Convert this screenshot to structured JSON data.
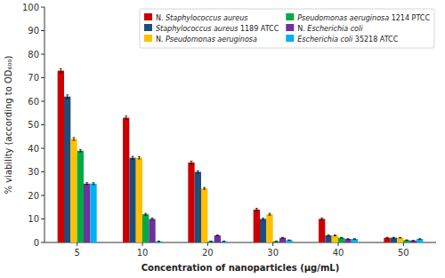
{
  "chart_data": {
    "type": "bar",
    "xlabel": "Concentration of nanoparticles (μg/mL)",
    "ylabel": "% viability (according to OD₆₀₀)",
    "categories": [
      "5",
      "10",
      "20",
      "30",
      "40",
      "50"
    ],
    "series": [
      {
        "name": "N. Staphylococcus aureus",
        "color": "#cc0000",
        "values": [
          73,
          53,
          34,
          14,
          10,
          2
        ],
        "errors": [
          0.8,
          0.7,
          0.6,
          0.5,
          0.4,
          0.2
        ]
      },
      {
        "name": "Staphylococcus aureus 1189 ATCC",
        "color": "#1f4e79",
        "values": [
          62,
          36,
          30,
          10,
          3,
          2
        ],
        "errors": [
          0.7,
          0.6,
          0.5,
          0.4,
          0.3,
          0.2
        ]
      },
      {
        "name": "N. Pseudomonas aeruginosa",
        "color": "#ffc000",
        "values": [
          44,
          36,
          23,
          12,
          3,
          2
        ],
        "errors": [
          0.6,
          0.5,
          0.4,
          0.4,
          0.2,
          0.1
        ]
      },
      {
        "name": "Pseudomonas aeruginosa 1214 PTCC",
        "color": "#00aa44",
        "values": [
          39,
          12,
          0.5,
          0.5,
          2,
          1
        ],
        "errors": [
          0.5,
          0.4,
          0.1,
          0.1,
          0.15,
          0.1
        ]
      },
      {
        "name": "N. Escherichia coli",
        "color": "#7030a0",
        "values": [
          25,
          10,
          3,
          2,
          1.5,
          0.8
        ],
        "errors": [
          0.4,
          0.4,
          0.2,
          0.15,
          0.1,
          0.08
        ]
      },
      {
        "name": "Escherichia coli 35218 ATCC",
        "color": "#00b0f0",
        "values": [
          25,
          0.5,
          0.5,
          1,
          1.5,
          1.5
        ],
        "errors": [
          0.4,
          0.1,
          0.1,
          0.1,
          0.1,
          0.1
        ]
      }
    ],
    "ylim": [
      0,
      100
    ],
    "yticks": [
      0,
      10,
      20,
      30,
      40,
      50,
      60,
      70,
      80,
      90,
      100
    ],
    "grid": false,
    "legend": "upper right"
  }
}
